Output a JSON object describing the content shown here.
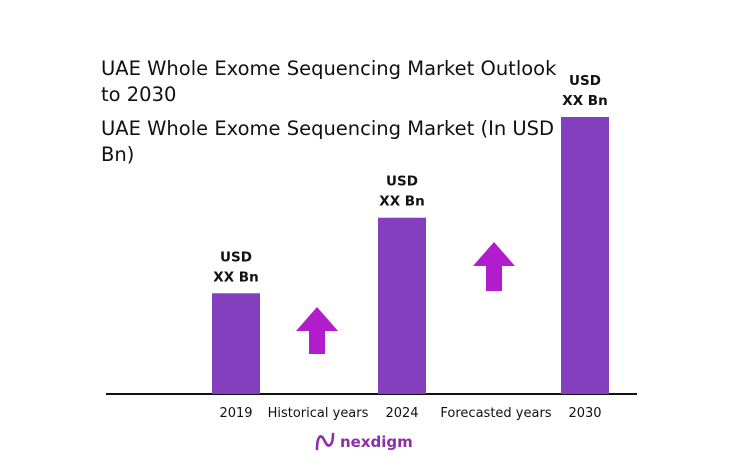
{
  "title": "UAE Whole Exome Sequencing Market Outlook to 2030",
  "subtitle": "UAE Whole Exome Sequencing Market (In USD Bn)",
  "brand": {
    "name": "nexdigm",
    "logo_icon": "nexdigm-logo-icon",
    "color": "#8e2fa8"
  },
  "colors": {
    "bar": "#843fbf",
    "arrow": "#b11ccc",
    "axis": "#111111",
    "text": "#111111"
  },
  "chart_data": {
    "type": "bar",
    "categories": [
      "2019",
      "2024",
      "2030"
    ],
    "values": [
      1.0,
      1.75,
      2.75
    ],
    "value_labels": [
      {
        "line1": "USD",
        "line2": "XX Bn"
      },
      {
        "line1": "USD",
        "line2": "XX Bn"
      },
      {
        "line1": "USD",
        "line2": "XX Bn"
      }
    ],
    "annotations": [
      {
        "text": "Historical years",
        "arrow": "up-arrow-icon"
      },
      {
        "text": "Forecasted years",
        "arrow": "up-arrow-icon"
      }
    ],
    "ylim": [
      0,
      2.75
    ],
    "grid": false,
    "legend": "none"
  }
}
